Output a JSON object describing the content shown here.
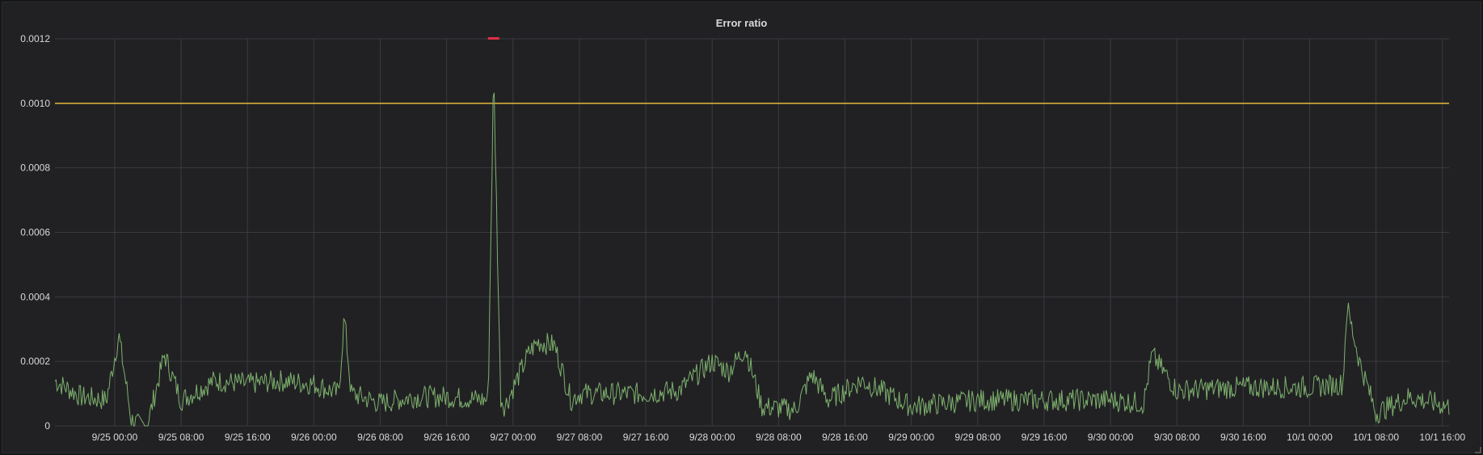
{
  "panel": {
    "title": "Error ratio"
  },
  "chart_data": {
    "type": "line",
    "title": "Error ratio",
    "xlabel": "",
    "ylabel": "",
    "ylim": [
      0,
      0.0012
    ],
    "yticks": [
      "0",
      "0.0002",
      "0.0004",
      "0.0006",
      "0.0008",
      "0.0010",
      "0.0012"
    ],
    "xlim": [
      "2023-09-24 16:48",
      "2023-10-01 16:48"
    ],
    "xticks": [
      "9/25 00:00",
      "9/25 08:00",
      "9/25 16:00",
      "9/26 00:00",
      "9/26 08:00",
      "9/26 16:00",
      "9/27 00:00",
      "9/27 08:00",
      "9/27 16:00",
      "9/28 00:00",
      "9/28 08:00",
      "9/28 16:00",
      "9/29 00:00",
      "9/29 08:00",
      "9/29 16:00",
      "9/30 00:00",
      "9/30 08:00",
      "9/30 16:00",
      "10/1 00:00",
      "10/1 08:00",
      "10/1 16:00"
    ],
    "grid": true,
    "threshold": {
      "value": 0.001,
      "color": "#eab839"
    },
    "annotation_color": "#e02f44",
    "series_color": "#7eb26d",
    "series": [
      {
        "x": [
          "9/24 16:48",
          "9/24 20:00",
          "9/24 23:00",
          "9/25 00:30",
          "9/25 02:00",
          "9/25 03:00",
          "9/25 04:00",
          "9/25 06:00",
          "9/25 08:00",
          "9/25 12:00",
          "9/25 16:00",
          "9/25 20:00",
          "9/26 00:00",
          "9/26 03:00",
          "9/26 03:40",
          "9/26 04:30",
          "9/26 08:00",
          "9/26 12:00",
          "9/26 16:00",
          "9/26 21:00",
          "9/26 21:40",
          "9/26 22:30",
          "9/26 23:00",
          "9/27 02:00",
          "9/27 03:00",
          "9/27 05:00",
          "9/27 07:00",
          "9/27 08:00",
          "9/27 10:00",
          "9/27 16:00",
          "9/27 20:00",
          "9/28 00:00",
          "9/28 02:00",
          "9/28 04:00",
          "9/28 06:00",
          "9/28 10:00",
          "9/28 12:00",
          "9/28 14:00",
          "9/28 18:00",
          "9/29 00:00",
          "9/29 04:00",
          "9/29 08:00",
          "9/29 16:00",
          "9/30 00:00",
          "9/30 04:00",
          "9/30 05:00",
          "9/30 08:00",
          "9/30 16:00",
          "10/1 00:00",
          "10/1 04:00",
          "10/1 04:30",
          "10/1 06:00",
          "10/1 08:00",
          "10/1 12:00",
          "10/1 16:48"
        ],
        "y": [
          0.00014,
          9e-05,
          8e-05,
          0.00028,
          2e-05,
          0.0,
          1e-05,
          0.00022,
          8e-05,
          0.00014,
          0.00013,
          0.00014,
          0.00013,
          0.0001,
          0.00034,
          0.0001,
          7e-05,
          9e-05,
          9e-05,
          8e-05,
          0.0011,
          9e-05,
          6e-05,
          0.00023,
          0.00026,
          0.00025,
          8e-05,
          0.0001,
          0.0001,
          0.0001,
          0.00011,
          0.0002,
          0.00017,
          0.00024,
          6e-05,
          5e-05,
          0.00016,
          8e-05,
          0.00014,
          6e-05,
          7e-05,
          8e-05,
          8e-05,
          8e-05,
          7e-05,
          0.00022,
          0.00011,
          0.00012,
          0.00012,
          0.00013,
          0.00037,
          0.0002,
          4e-05,
          9e-05,
          6e-05
        ]
      }
    ]
  }
}
